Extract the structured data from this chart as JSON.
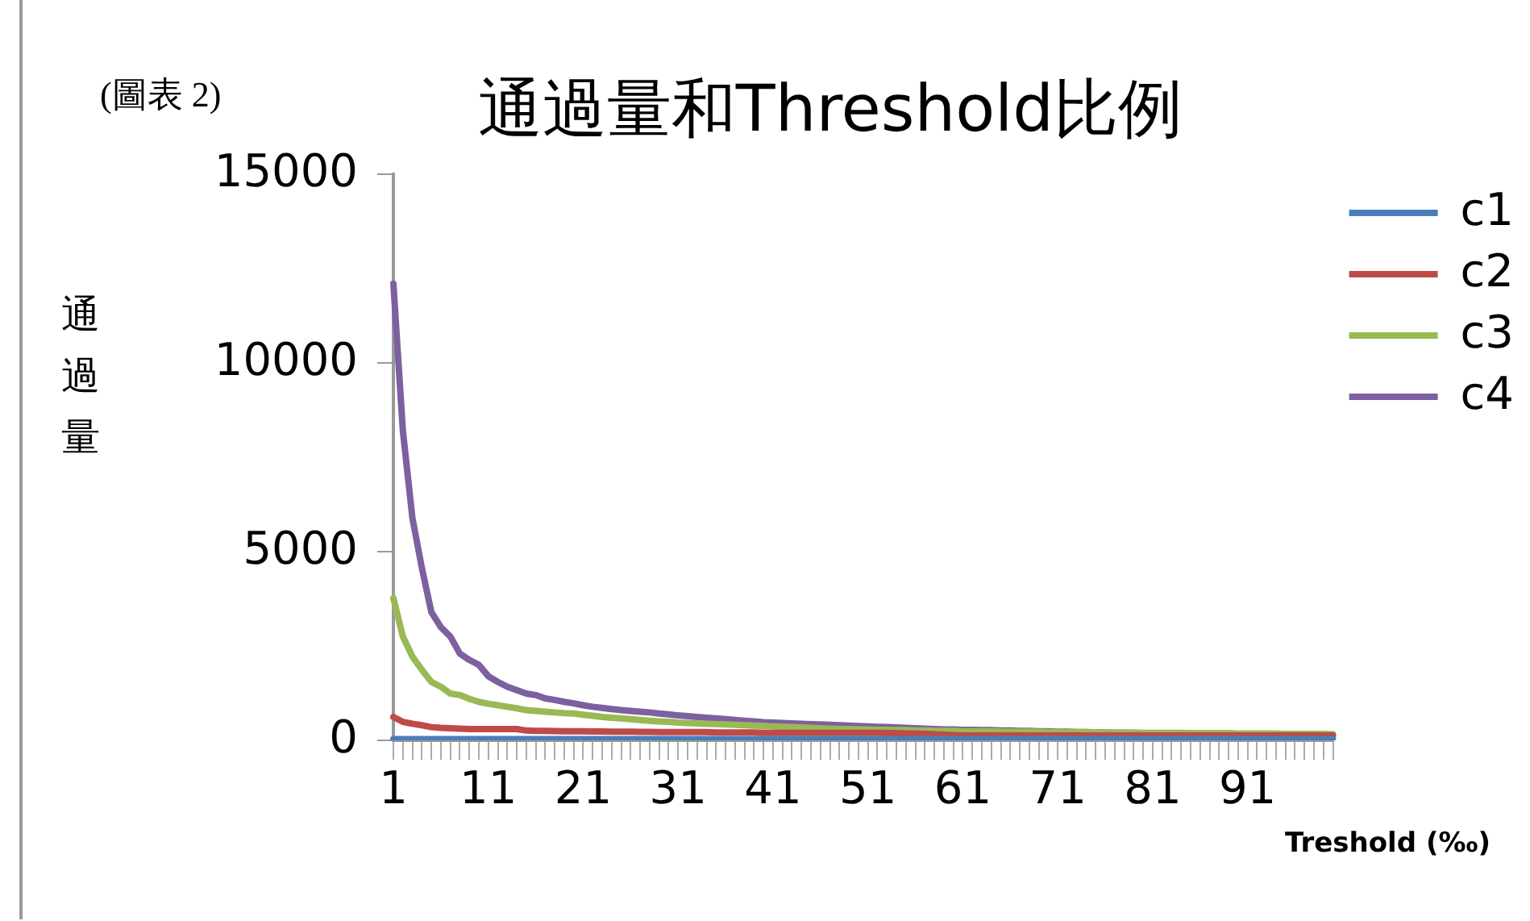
{
  "chart_data": {
    "type": "line",
    "title": "通過量和Threshold比例",
    "ylabel": "通過量",
    "xlabel": "Treshold (‰)",
    "annotations": [
      "(圖表 2)"
    ],
    "categories": [
      "1",
      null,
      null,
      null,
      null,
      null,
      null,
      null,
      null,
      null,
      "11",
      null,
      null,
      null,
      null,
      null,
      null,
      null,
      null,
      null,
      "21",
      null,
      null,
      null,
      null,
      null,
      null,
      null,
      null,
      null,
      "31",
      null,
      null,
      null,
      null,
      null,
      null,
      null,
      null,
      null,
      "41",
      null,
      null,
      null,
      null,
      null,
      null,
      null,
      null,
      null,
      "51",
      null,
      null,
      null,
      null,
      null,
      null,
      null,
      null,
      null,
      "61",
      null,
      null,
      null,
      null,
      null,
      null,
      null,
      null,
      null,
      "71",
      null,
      null,
      null,
      null,
      null,
      null,
      null,
      null,
      null,
      "81",
      null,
      null,
      null,
      null,
      null,
      null,
      null,
      null,
      null,
      "91",
      null,
      null,
      null,
      null,
      null,
      null,
      null,
      null,
      null
    ],
    "ylim": [
      0,
      15000
    ],
    "yticks": [
      0,
      5000,
      10000,
      15000
    ],
    "grid": false,
    "legend": "right",
    "marker": "none",
    "line_style": "solid",
    "series": [
      {
        "name": "c1",
        "color": "#4a7ebb",
        "values": [
          30,
          30,
          30,
          30,
          30,
          30,
          30,
          30,
          30,
          30,
          30,
          30,
          30,
          30,
          30,
          30,
          30,
          30,
          30,
          30,
          30,
          30,
          30,
          30,
          30,
          30,
          30,
          30,
          30,
          30,
          30,
          30,
          30,
          30,
          30,
          30,
          30,
          30,
          30,
          30,
          30,
          30,
          30,
          30,
          30,
          30,
          30,
          30,
          30,
          30,
          30,
          30,
          30,
          30,
          30,
          30,
          30,
          30,
          30,
          30,
          30,
          30,
          30,
          30,
          30,
          30,
          30,
          30,
          30,
          30,
          30,
          30,
          30,
          30,
          30,
          30,
          30,
          30,
          30,
          30,
          30,
          30,
          30,
          30,
          30,
          30,
          30,
          30,
          30,
          30,
          30,
          30,
          30,
          30,
          30,
          30,
          30,
          30,
          30,
          30
        ]
      },
      {
        "name": "c2",
        "color": "#be4b48",
        "values": [
          620,
          490,
          440,
          400,
          350,
          330,
          320,
          310,
          300,
          300,
          300,
          300,
          300,
          300,
          260,
          250,
          250,
          245,
          240,
          240,
          240,
          235,
          235,
          230,
          230,
          230,
          225,
          225,
          220,
          220,
          220,
          220,
          220,
          220,
          210,
          210,
          210,
          210,
          210,
          200,
          200,
          200,
          200,
          200,
          200,
          200,
          200,
          200,
          200,
          200,
          200,
          200,
          190,
          190,
          180,
          180,
          170,
          160,
          150,
          140,
          130,
          130,
          130,
          130,
          130,
          130,
          130,
          130,
          130,
          130,
          130,
          130,
          130,
          130,
          130,
          130,
          130,
          130,
          130,
          130,
          130,
          130,
          130,
          130,
          130,
          130,
          130,
          130,
          130,
          130,
          130,
          130,
          130,
          130,
          130,
          130,
          130,
          130,
          130,
          130
        ]
      },
      {
        "name": "c3",
        "color": "#98b954",
        "values": [
          3770,
          2750,
          2220,
          1870,
          1550,
          1420,
          1240,
          1200,
          1100,
          1020,
          970,
          930,
          890,
          850,
          800,
          780,
          760,
          740,
          720,
          710,
          680,
          650,
          620,
          600,
          580,
          560,
          540,
          520,
          500,
          490,
          470,
          460,
          450,
          440,
          430,
          420,
          410,
          400,
          390,
          380,
          370,
          360,
          350,
          340,
          330,
          320,
          310,
          300,
          300,
          290,
          290,
          280,
          280,
          270,
          270,
          260,
          260,
          250,
          250,
          250,
          240,
          240,
          240,
          240,
          230,
          230,
          230,
          230,
          230,
          220,
          220,
          220,
          220,
          220,
          210,
          210,
          210,
          210,
          210,
          200,
          200,
          200,
          200,
          200,
          190,
          190,
          190,
          190,
          190,
          180,
          180,
          180,
          180,
          180,
          170,
          170,
          170,
          170,
          170,
          160
        ]
      },
      {
        "name": "c4",
        "color": "#7d60a0",
        "values": [
          12100,
          8200,
          5900,
          4570,
          3400,
          3000,
          2750,
          2300,
          2130,
          2000,
          1700,
          1550,
          1420,
          1330,
          1240,
          1200,
          1110,
          1070,
          1020,
          980,
          930,
          890,
          860,
          830,
          800,
          780,
          760,
          740,
          710,
          690,
          660,
          640,
          620,
          600,
          580,
          560,
          540,
          520,
          500,
          480,
          470,
          460,
          450,
          440,
          430,
          420,
          410,
          400,
          390,
          380,
          370,
          360,
          350,
          340,
          330,
          320,
          310,
          300,
          290,
          290,
          280,
          280,
          270,
          270,
          260,
          260,
          250,
          250,
          240,
          240,
          230,
          230,
          220,
          220,
          210,
          210,
          200,
          200,
          190,
          190,
          180,
          180,
          170,
          170,
          170,
          160,
          160,
          160,
          160,
          150,
          150,
          150,
          150,
          140,
          140,
          140,
          140,
          140,
          130,
          130
        ]
      }
    ]
  }
}
